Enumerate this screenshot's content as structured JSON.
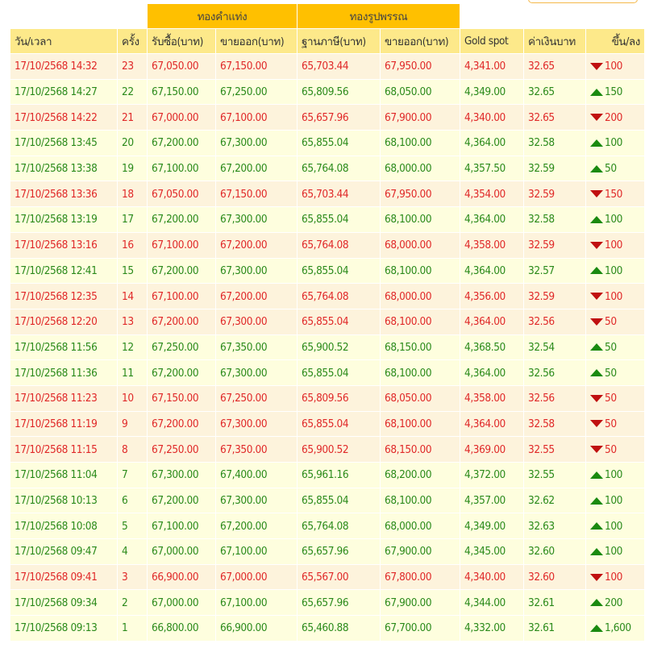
{
  "group_headers": {
    "bar": "ทองคำแท่ง",
    "ornament": "ทองรูปพรรณ"
  },
  "columns": [
    "วัน/เวลา",
    "ครั้ง",
    "รับซื้อ(บาท)",
    "ขายออก(บาท)",
    "ฐานภาษี(บาท)",
    "ขายออก(บาท)",
    "Gold spot",
    "ค่าเงินบาท",
    "ขึ้น/ลง"
  ],
  "colors": {
    "up": "#2a8a1a",
    "down": "#e02828",
    "group_header": "#ffc000",
    "header": "#fde98a"
  },
  "rows": [
    [
      "17/10/2568 14:32",
      "23",
      "67,050.00",
      "67,150.00",
      "65,703.44",
      "67,950.00",
      "4,341.00",
      "32.65",
      "down",
      "100"
    ],
    [
      "17/10/2568 14:27",
      "22",
      "67,150.00",
      "67,250.00",
      "65,809.56",
      "68,050.00",
      "4,349.00",
      "32.65",
      "up",
      "150"
    ],
    [
      "17/10/2568 14:22",
      "21",
      "67,000.00",
      "67,100.00",
      "65,657.96",
      "67,900.00",
      "4,340.00",
      "32.65",
      "down",
      "200"
    ],
    [
      "17/10/2568 13:45",
      "20",
      "67,200.00",
      "67,300.00",
      "65,855.04",
      "68,100.00",
      "4,364.00",
      "32.58",
      "up",
      "100"
    ],
    [
      "17/10/2568 13:38",
      "19",
      "67,100.00",
      "67,200.00",
      "65,764.08",
      "68,000.00",
      "4,357.50",
      "32.59",
      "up",
      "50"
    ],
    [
      "17/10/2568 13:36",
      "18",
      "67,050.00",
      "67,150.00",
      "65,703.44",
      "67,950.00",
      "4,354.00",
      "32.59",
      "down",
      "150"
    ],
    [
      "17/10/2568 13:19",
      "17",
      "67,200.00",
      "67,300.00",
      "65,855.04",
      "68,100.00",
      "4,364.00",
      "32.58",
      "up",
      "100"
    ],
    [
      "17/10/2568 13:16",
      "16",
      "67,100.00",
      "67,200.00",
      "65,764.08",
      "68,000.00",
      "4,358.00",
      "32.59",
      "down",
      "100"
    ],
    [
      "17/10/2568 12:41",
      "15",
      "67,200.00",
      "67,300.00",
      "65,855.04",
      "68,100.00",
      "4,364.00",
      "32.57",
      "up",
      "100"
    ],
    [
      "17/10/2568 12:35",
      "14",
      "67,100.00",
      "67,200.00",
      "65,764.08",
      "68,000.00",
      "4,356.00",
      "32.59",
      "down",
      "100"
    ],
    [
      "17/10/2568 12:20",
      "13",
      "67,200.00",
      "67,300.00",
      "65,855.04",
      "68,100.00",
      "4,364.00",
      "32.56",
      "down",
      "50"
    ],
    [
      "17/10/2568 11:56",
      "12",
      "67,250.00",
      "67,350.00",
      "65,900.52",
      "68,150.00",
      "4,368.50",
      "32.54",
      "up",
      "50"
    ],
    [
      "17/10/2568 11:36",
      "11",
      "67,200.00",
      "67,300.00",
      "65,855.04",
      "68,100.00",
      "4,364.00",
      "32.56",
      "up",
      "50"
    ],
    [
      "17/10/2568 11:23",
      "10",
      "67,150.00",
      "67,250.00",
      "65,809.56",
      "68,050.00",
      "4,358.00",
      "32.56",
      "down",
      "50"
    ],
    [
      "17/10/2568 11:19",
      "9",
      "67,200.00",
      "67,300.00",
      "65,855.04",
      "68,100.00",
      "4,364.00",
      "32.58",
      "down",
      "50"
    ],
    [
      "17/10/2568 11:15",
      "8",
      "67,250.00",
      "67,350.00",
      "65,900.52",
      "68,150.00",
      "4,369.00",
      "32.55",
      "down",
      "50"
    ],
    [
      "17/10/2568 11:04",
      "7",
      "67,300.00",
      "67,400.00",
      "65,961.16",
      "68,200.00",
      "4,372.00",
      "32.55",
      "up",
      "100"
    ],
    [
      "17/10/2568 10:13",
      "6",
      "67,200.00",
      "67,300.00",
      "65,855.04",
      "68,100.00",
      "4,357.00",
      "32.62",
      "up",
      "100"
    ],
    [
      "17/10/2568 10:08",
      "5",
      "67,100.00",
      "67,200.00",
      "65,764.08",
      "68,000.00",
      "4,349.00",
      "32.63",
      "up",
      "100"
    ],
    [
      "17/10/2568 09:47",
      "4",
      "67,000.00",
      "67,100.00",
      "65,657.96",
      "67,900.00",
      "4,345.00",
      "32.60",
      "up",
      "100"
    ],
    [
      "17/10/2568 09:41",
      "3",
      "66,900.00",
      "67,000.00",
      "65,567.00",
      "67,800.00",
      "4,340.00",
      "32.60",
      "down",
      "100"
    ],
    [
      "17/10/2568 09:34",
      "2",
      "67,000.00",
      "67,100.00",
      "65,657.96",
      "67,900.00",
      "4,344.00",
      "32.61",
      "up",
      "200"
    ],
    [
      "17/10/2568 09:13",
      "1",
      "66,800.00",
      "66,900.00",
      "65,460.88",
      "67,700.00",
      "4,332.00",
      "32.61",
      "up",
      "1,600"
    ]
  ]
}
